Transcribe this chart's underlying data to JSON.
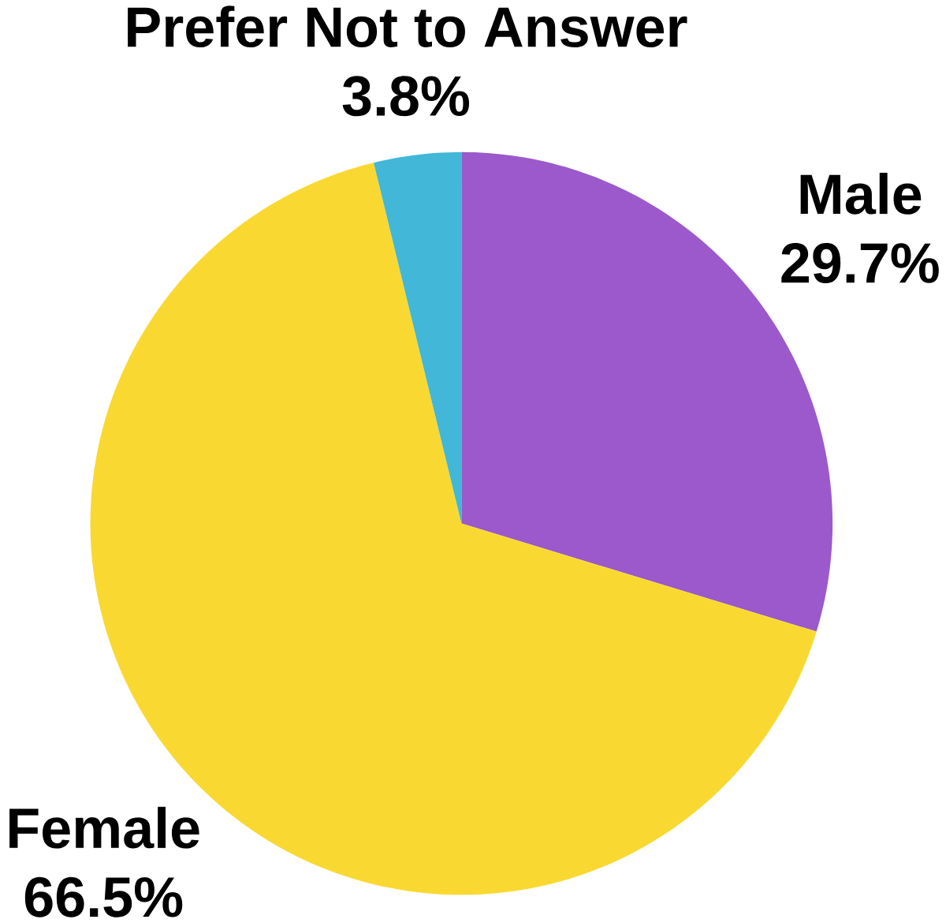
{
  "chart_data": {
    "type": "pie",
    "categories": [
      "Male",
      "Female",
      "Prefer Not to Answer"
    ],
    "values": [
      29.7,
      66.5,
      3.8
    ],
    "value_labels": [
      "29.7%",
      "66.5%",
      "3.8%"
    ],
    "colors": [
      "#9b59cb",
      "#f9d931",
      "#42b7d7"
    ]
  }
}
